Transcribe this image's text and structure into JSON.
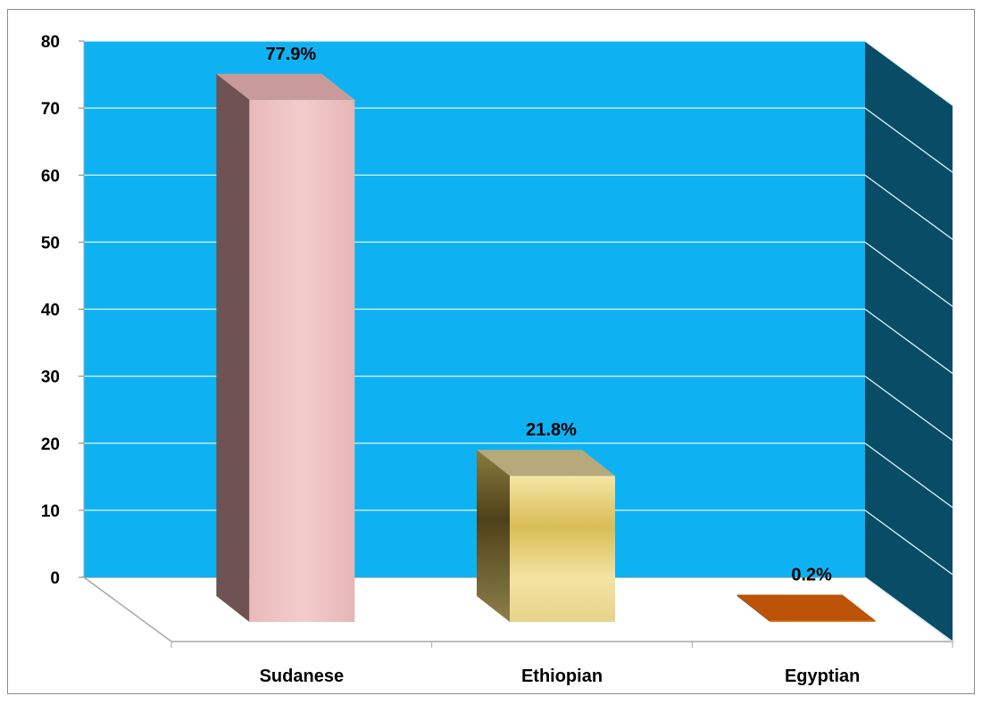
{
  "chart_data": {
    "type": "bar",
    "title": "",
    "xlabel": "",
    "ylabel": "",
    "categories": [
      "Sudanese",
      "Ethiopian",
      "Egyptian"
    ],
    "values": [
      77.9,
      21.8,
      0.2
    ],
    "data_labels": [
      "77.9%",
      "21.8%",
      "0.2%"
    ],
    "ylim": [
      0,
      80
    ],
    "yticks": [
      0,
      10,
      20,
      30,
      40,
      50,
      60,
      70,
      80
    ],
    "ytick_labels": [
      "0",
      "10",
      "20",
      "30",
      "40",
      "50",
      "60",
      "70",
      "80"
    ],
    "grid": true,
    "legend": "none",
    "style": "3d-column",
    "colors": {
      "wall": "#0eb2f2",
      "side_wall": "#084c66",
      "gridline": "#dff4fd",
      "floor": "#ffffff",
      "bars": [
        {
          "front": "#efc4c4",
          "side": "#6f5353",
          "top": "#c99a9a"
        },
        {
          "front": "#e6d27e",
          "side": "#6b5e2e",
          "top": "#b7a97a"
        },
        {
          "front": "#e07b1e",
          "side": "#8a3f08",
          "top": "#bb5205"
        }
      ]
    }
  }
}
